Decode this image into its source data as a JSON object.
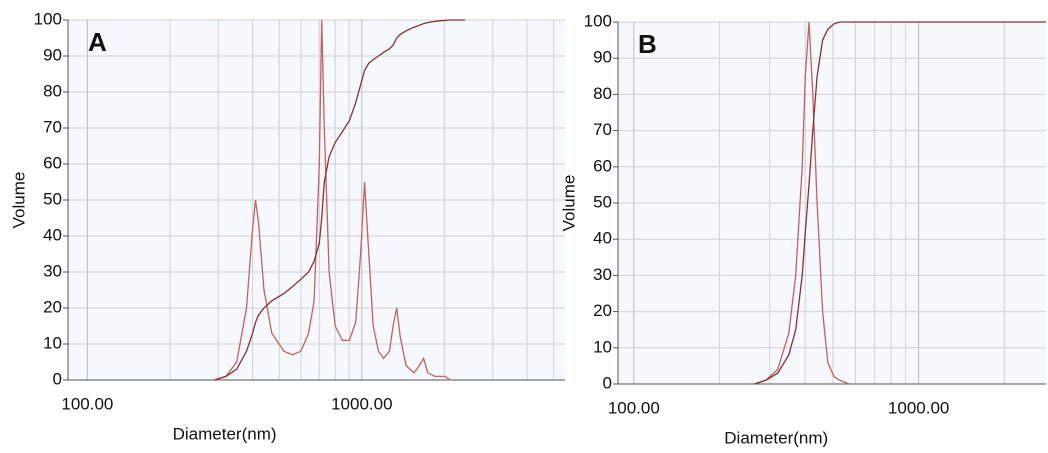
{
  "chart_data": [
    {
      "type": "line",
      "label": "A",
      "x_label": "Diameter(nm)",
      "y_label": "Volume",
      "log_x": true,
      "grid": true,
      "xlim": [
        85,
        5500
      ],
      "ylim": [
        0,
        100
      ],
      "xticks": [
        {
          "value": 100,
          "label": "100.00"
        },
        {
          "value": 1000,
          "label": "1000.00"
        }
      ],
      "x_minor_grid": [
        200,
        300,
        400,
        500,
        600,
        700,
        800,
        900,
        2000,
        3000,
        4000,
        5000
      ],
      "yticks": [
        0,
        10,
        20,
        30,
        40,
        50,
        60,
        70,
        80,
        90,
        100
      ],
      "x": [
        290,
        320,
        350,
        380,
        400,
        410,
        420,
        440,
        470,
        520,
        560,
        600,
        640,
        670,
        700,
        714,
        730,
        760,
        800,
        850,
        900,
        950,
        990,
        1024,
        1060,
        1100,
        1150,
        1200,
        1260,
        1300,
        1340,
        1380,
        1450,
        1550,
        1620,
        1680,
        1740,
        1850,
        1950,
        2010,
        2100,
        2380
      ],
      "series": [
        {
          "color": "#c8605a",
          "values": [
            0,
            1,
            5,
            20,
            42,
            50,
            44,
            25,
            13,
            8,
            7,
            8,
            13,
            22,
            60,
            100,
            70,
            30,
            15,
            11,
            11,
            16,
            35,
            55,
            35,
            15,
            8,
            6,
            8,
            15,
            20,
            12,
            4,
            2,
            4,
            6,
            2,
            1,
            1,
            1,
            0,
            null
          ]
        },
        {
          "color": "#8a3030",
          "values": [
            0,
            1,
            3,
            8,
            13,
            16,
            18,
            20,
            22,
            24,
            26,
            28,
            30,
            33,
            38,
            45,
            55,
            62,
            66,
            69,
            72,
            77,
            82,
            86,
            88,
            89,
            90,
            91,
            92,
            93,
            95,
            96,
            97,
            98,
            98.5,
            99,
            99.3,
            99.6,
            99.8,
            99.9,
            100,
            100
          ]
        }
      ]
    },
    {
      "type": "line",
      "label": "B",
      "x_label": "Diameter(nm)",
      "y_label": "Volume",
      "log_x": true,
      "grid": true,
      "xlim": [
        88,
        2800
      ],
      "ylim": [
        0,
        100
      ],
      "xticks": [
        {
          "value": 100,
          "label": "100.00"
        },
        {
          "value": 1000,
          "label": "1000.00"
        }
      ],
      "x_minor_grid": [
        200,
        300,
        400,
        500,
        600,
        700,
        800,
        900,
        2000
      ],
      "yticks": [
        0,
        10,
        20,
        30,
        40,
        50,
        60,
        70,
        80,
        90,
        100
      ],
      "x": [
        265,
        290,
        320,
        350,
        370,
        390,
        400,
        412,
        425,
        440,
        460,
        480,
        505,
        530,
        569,
        1000,
        2800
      ],
      "series": [
        {
          "color": "#c8605a",
          "values": [
            0,
            1,
            4,
            14,
            30,
            60,
            85,
            100,
            80,
            50,
            20,
            6,
            2,
            1,
            0,
            null,
            null
          ]
        },
        {
          "color": "#8a3030",
          "values": [
            0,
            1,
            3,
            8,
            15,
            30,
            42,
            55,
            70,
            85,
            95,
            98,
            99.5,
            100,
            100,
            100,
            100
          ]
        }
      ]
    }
  ]
}
